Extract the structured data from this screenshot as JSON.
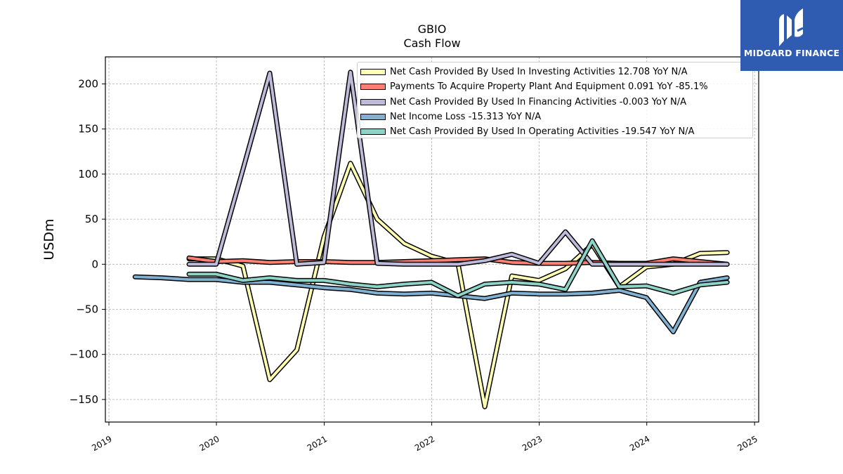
{
  "chart_data": {
    "type": "line",
    "title": "GBIO",
    "subtitle": "Cash Flow",
    "xlabel": "",
    "ylabel": "USDm",
    "xlim": [
      "2018-12-20",
      "2025-01-15"
    ],
    "ylim": [
      -175,
      230
    ],
    "x_ticks": [
      "2019",
      "2020",
      "2021",
      "2022",
      "2023",
      "2024",
      "2025"
    ],
    "y_ticks": [
      200,
      150,
      100,
      50,
      0,
      -50,
      -100,
      -150
    ],
    "y_tick_labels": [
      "200",
      "150",
      "100",
      "50",
      "0",
      "−50",
      "−100",
      "−150"
    ],
    "grid": true,
    "legend_position": "top-right",
    "series": [
      {
        "name": "Net Cash Provided By Used In Investing Activities  12.708 YoY N/A",
        "color": "#ffffb3",
        "x": [
          "2019-09-30",
          "2019-12-31",
          "2020-03-31",
          "2020-06-30",
          "2020-09-30",
          "2020-12-31",
          "2021-03-31",
          "2021-06-30",
          "2021-09-30",
          "2021-12-31",
          "2022-03-31",
          "2022-06-30",
          "2022-09-30",
          "2022-12-31",
          "2023-03-31",
          "2023-06-30",
          "2023-09-30",
          "2023-12-31",
          "2024-03-31",
          "2024-06-30",
          "2024-09-30"
        ],
        "values": [
          6,
          6,
          -2,
          -128,
          -95,
          30,
          112,
          50,
          23,
          9,
          1,
          -158,
          -13,
          -18,
          -5,
          22,
          -25,
          -3,
          0,
          12,
          13
        ]
      },
      {
        "name": "Payments To Acquire Property Plant And Equipment  0.091 YoY -85.1%",
        "color": "#fb8072",
        "x": [
          "2019-09-30",
          "2019-12-31",
          "2020-03-31",
          "2020-06-30",
          "2020-09-30",
          "2020-12-31",
          "2021-03-31",
          "2021-06-30",
          "2021-09-30",
          "2021-12-31",
          "2022-03-31",
          "2022-06-30",
          "2022-09-30",
          "2022-12-31",
          "2023-03-31",
          "2023-06-30",
          "2023-09-30",
          "2023-12-31",
          "2024-03-31",
          "2024-06-30",
          "2024-09-30"
        ],
        "values": [
          7,
          3,
          4,
          2,
          3,
          3,
          2,
          2,
          3,
          4,
          5,
          6,
          2,
          1,
          1,
          2,
          1,
          1,
          6,
          3,
          0.1
        ]
      },
      {
        "name": "Net Cash Provided By Used In Financing Activities  -0.003 YoY N/A",
        "color": "#bebada",
        "x": [
          "2019-09-30",
          "2019-12-31",
          "2020-03-31",
          "2020-06-30",
          "2020-09-30",
          "2020-12-31",
          "2021-03-31",
          "2021-06-30",
          "2021-09-30",
          "2021-12-31",
          "2022-03-31",
          "2022-06-30",
          "2022-09-30",
          "2022-12-31",
          "2023-03-31",
          "2023-06-30",
          "2023-09-30",
          "2023-12-31",
          "2024-03-31",
          "2024-06-30",
          "2024-09-30"
        ],
        "values": [
          0,
          0,
          105,
          212,
          0,
          2,
          213,
          1,
          0,
          0,
          0,
          4,
          11,
          1,
          36,
          0,
          0,
          0,
          0,
          0,
          0
        ]
      },
      {
        "name": "Net Income Loss  -15.313 YoY N/A",
        "color": "#80b1d3",
        "x": [
          "2019-03-31",
          "2019-06-30",
          "2019-09-30",
          "2019-12-31",
          "2020-03-31",
          "2020-06-30",
          "2020-09-30",
          "2020-12-31",
          "2021-03-31",
          "2021-06-30",
          "2021-09-30",
          "2021-12-31",
          "2022-03-31",
          "2022-06-30",
          "2022-09-30",
          "2022-12-31",
          "2023-03-31",
          "2023-06-30",
          "2023-09-30",
          "2023-12-31",
          "2024-03-31",
          "2024-06-30",
          "2024-09-30"
        ],
        "values": [
          -14,
          -15,
          -17,
          -17,
          -20,
          -20,
          -23,
          -26,
          -28,
          -32,
          -33,
          -32,
          -35,
          -38,
          -32,
          -33,
          -33,
          -32,
          -29,
          -37,
          -75,
          -20,
          -15
        ]
      },
      {
        "name": "Net Cash Provided By Used In Operating Activities  -19.547 YoY N/A",
        "color": "#8dd3c7",
        "x": [
          "2019-09-30",
          "2019-12-31",
          "2020-03-31",
          "2020-06-30",
          "2020-09-30",
          "2020-12-31",
          "2021-03-31",
          "2021-06-30",
          "2021-09-30",
          "2021-12-31",
          "2022-03-31",
          "2022-06-30",
          "2022-09-30",
          "2022-12-31",
          "2023-03-31",
          "2023-06-30",
          "2023-09-30",
          "2023-12-31",
          "2024-03-31",
          "2024-06-30",
          "2024-09-30"
        ],
        "values": [
          -11,
          -11,
          -18,
          -15,
          -18,
          -18,
          -22,
          -25,
          -22,
          -20,
          -35,
          -22,
          -20,
          -22,
          -28,
          26,
          -25,
          -24,
          -32,
          -23,
          -20
        ]
      }
    ]
  },
  "logo": {
    "text": "MIDGARD FINANCE",
    "background": "#2f5bb0"
  }
}
